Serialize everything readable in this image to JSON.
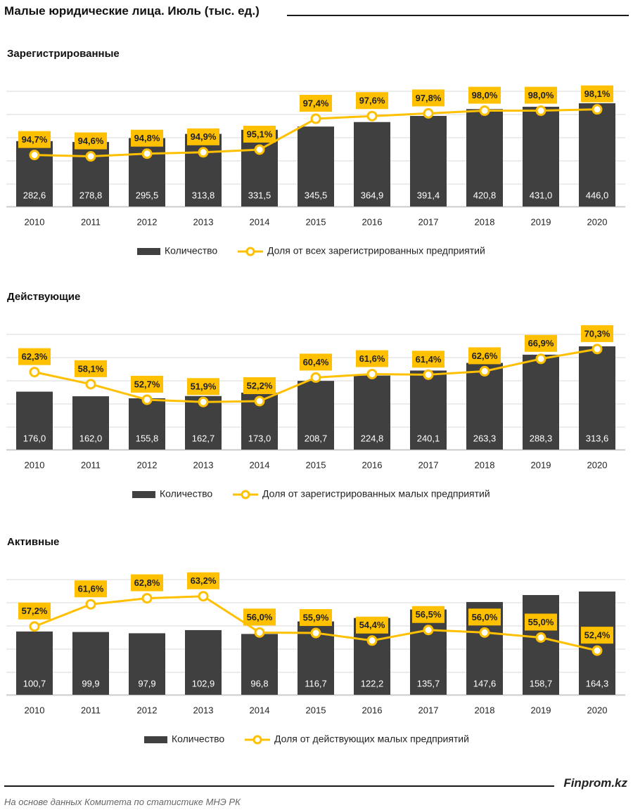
{
  "header": {
    "title": "Малые юридические лица. Июль (тыс. ед.)"
  },
  "footer": {
    "brand": "Finprom.kz",
    "source": "На основе данных Комитета по статистике МНЭ РК"
  },
  "colors": {
    "bar": "#404040",
    "line": "#FFC000",
    "label_bg": "#FFC000",
    "grid": "#D9D9D9",
    "bar_label": "#FFFFFF"
  },
  "chart_data": [
    {
      "type": "bar+line",
      "title": "Зарегистрированные",
      "categories": [
        "2010",
        "2011",
        "2012",
        "2013",
        "2014",
        "2015",
        "2016",
        "2017",
        "2018",
        "2019",
        "2020"
      ],
      "series": [
        {
          "name": "Количество",
          "type": "bar",
          "values": [
            282.6,
            278.8,
            295.5,
            313.8,
            331.5,
            345.5,
            364.9,
            391.4,
            420.8,
            431.0,
            446.0
          ],
          "labels": [
            "282,6",
            "278,8",
            "295,5",
            "313,8",
            "331,5",
            "345,5",
            "364,9",
            "391,4",
            "420,8",
            "431,0",
            "446,0"
          ]
        },
        {
          "name": "Доля от всех зарегистрированных предприятий",
          "type": "line",
          "values": [
            94.7,
            94.6,
            94.8,
            94.9,
            95.1,
            97.4,
            97.6,
            97.8,
            98.0,
            98.0,
            98.1
          ],
          "labels": [
            "94,7%",
            "94,6%",
            "94,8%",
            "94,9%",
            "95,1%",
            "97,4%",
            "97,6%",
            "97,8%",
            "98,0%",
            "98,0%",
            "98,1%"
          ]
        }
      ],
      "legend_position": "bottom",
      "grid": true
    },
    {
      "type": "bar+line",
      "title": "Действующие",
      "categories": [
        "2010",
        "2011",
        "2012",
        "2013",
        "2014",
        "2015",
        "2016",
        "2017",
        "2018",
        "2019",
        "2020"
      ],
      "series": [
        {
          "name": "Количество",
          "type": "bar",
          "values": [
            176.0,
            162.0,
            155.8,
            162.7,
            173.0,
            208.7,
            224.8,
            240.1,
            263.3,
            288.3,
            313.6
          ],
          "labels": [
            "176,0",
            "162,0",
            "155,8",
            "162,7",
            "173,0",
            "208,7",
            "224,8",
            "240,1",
            "263,3",
            "288,3",
            "313,6"
          ]
        },
        {
          "name": "Доля от зарегистрированных малых предприятий",
          "type": "line",
          "values": [
            62.3,
            58.1,
            52.7,
            51.9,
            52.2,
            60.4,
            61.6,
            61.4,
            62.6,
            66.9,
            70.3
          ],
          "labels": [
            "62,3%",
            "58,1%",
            "52,7%",
            "51,9%",
            "52,2%",
            "60,4%",
            "61,6%",
            "61,4%",
            "62,6%",
            "66,9%",
            "70,3%"
          ]
        }
      ],
      "legend_position": "bottom",
      "grid": true
    },
    {
      "type": "bar+line",
      "title": "Активные",
      "categories": [
        "2010",
        "2011",
        "2012",
        "2013",
        "2014",
        "2015",
        "2016",
        "2017",
        "2018",
        "2019",
        "2020"
      ],
      "series": [
        {
          "name": "Количество",
          "type": "bar",
          "values": [
            100.7,
            99.9,
            97.9,
            102.9,
            96.8,
            116.7,
            122.2,
            135.7,
            147.6,
            158.7,
            164.3
          ],
          "labels": [
            "100,7",
            "99,9",
            "97,9",
            "102,9",
            "96,8",
            "116,7",
            "122,2",
            "135,7",
            "147,6",
            "158,7",
            "164,3"
          ]
        },
        {
          "name": "Доля от действующих малых предприятий",
          "type": "line",
          "values": [
            57.2,
            61.6,
            62.8,
            63.2,
            56.0,
            55.9,
            54.4,
            56.5,
            56.0,
            55.0,
            52.4
          ],
          "labels": [
            "57,2%",
            "61,6%",
            "62,8%",
            "63,2%",
            "56,0%",
            "55,9%",
            "54,4%",
            "56,5%",
            "56,0%",
            "55,0%",
            "52,4%"
          ]
        }
      ],
      "legend_position": "bottom",
      "grid": true
    }
  ]
}
